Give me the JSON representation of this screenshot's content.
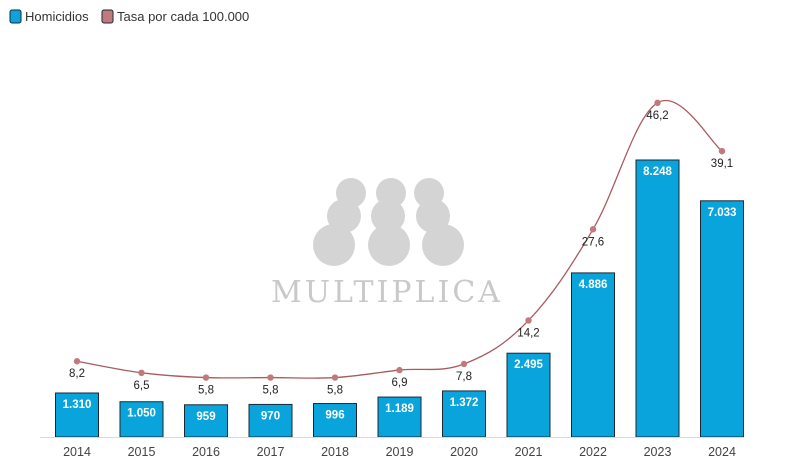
{
  "legend": {
    "bars_label": "Homicidios",
    "line_label": "Tasa por cada 100.000"
  },
  "watermark": {
    "text": "MULTIPLICA"
  },
  "colors": {
    "bar_fill": "#09a4dc",
    "bar_stroke": "#1a2a36",
    "line": "#a95b5f",
    "marker": "#c07a7e",
    "axis": "#d9d9d9",
    "watermark": "#d4d4d4"
  },
  "chart_data": {
    "type": "bar",
    "categories": [
      "2014",
      "2015",
      "2016",
      "2017",
      "2018",
      "2019",
      "2020",
      "2021",
      "2022",
      "2023",
      "2024"
    ],
    "series": [
      {
        "name": "Homicidios",
        "type": "bar",
        "values": [
          1310,
          1050,
          959,
          970,
          996,
          1189,
          1372,
          2495,
          4886,
          8248,
          7033
        ],
        "labels": [
          "1.310",
          "1.050",
          "959",
          "970",
          "996",
          "1.189",
          "1.372",
          "2.495",
          "4.886",
          "8.248",
          "7.033"
        ]
      },
      {
        "name": "Tasa por cada 100.000",
        "type": "line",
        "values": [
          8.2,
          6.5,
          5.8,
          5.8,
          5.8,
          6.9,
          7.8,
          14.2,
          27.6,
          46.2,
          39.1
        ],
        "labels": [
          "8,2",
          "6,5",
          "5,8",
          "5,8",
          "5,8",
          "6,9",
          "7,8",
          "14,2",
          "27,6",
          "46,2",
          "39,1"
        ]
      }
    ],
    "title": "",
    "xlabel": "",
    "ylabel": "",
    "legend_position": "top-left",
    "grid": false
  }
}
